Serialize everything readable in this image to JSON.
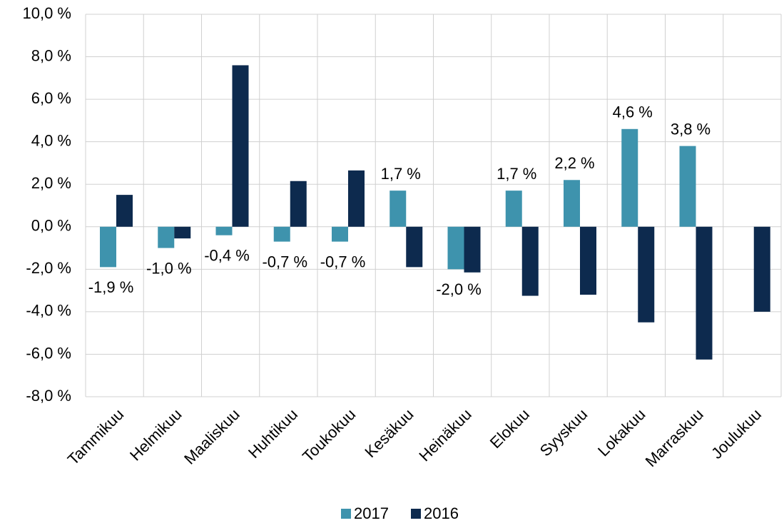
{
  "chart_data": {
    "type": "bar",
    "categories": [
      "Tammikuu",
      "Helmikuu",
      "Maaliskuu",
      "Huhtikuu",
      "Toukokuu",
      "Kesäkuu",
      "Heinäkuu",
      "Elokuu",
      "Syyskuu",
      "Lokakuu",
      "Marraskuu",
      "Joulukuu"
    ],
    "series": [
      {
        "name": "2017",
        "color": "#3e93ad",
        "values": [
          -1.9,
          -1.0,
          -0.4,
          -0.7,
          -0.7,
          1.7,
          -2.0,
          1.7,
          2.2,
          4.6,
          3.8,
          null
        ],
        "value_labels": [
          "-1,9 %",
          "-1,0 %",
          "-0,4 %",
          "-0,7 %",
          "-0,7 %",
          "1,7 %",
          "-2,0 %",
          "1,7 %",
          "2,2 %",
          "4,6 %",
          "3,8 %",
          null
        ]
      },
      {
        "name": "2016",
        "color": "#0d2a4e",
        "values": [
          1.5,
          -0.55,
          7.6,
          2.15,
          2.65,
          -1.9,
          -2.15,
          -3.25,
          -3.2,
          -4.5,
          -6.25,
          -4.0
        ]
      }
    ],
    "ylim": [
      -8,
      10
    ],
    "yticks": [
      {
        "value": -8,
        "label": "-8,0 %"
      },
      {
        "value": -6,
        "label": "-6,0 %"
      },
      {
        "value": -4,
        "label": "-4,0 %"
      },
      {
        "value": -2,
        "label": "-2,0 %"
      },
      {
        "value": 0,
        "label": "0,0 %"
      },
      {
        "value": 2,
        "label": "2,0 %"
      },
      {
        "value": 4,
        "label": "4,0 %"
      },
      {
        "value": 6,
        "label": "6,0 %"
      },
      {
        "value": 8,
        "label": "8,0 %"
      },
      {
        "value": 10,
        "label": "10,0 %"
      }
    ],
    "grid": true,
    "legend": "bottom"
  }
}
